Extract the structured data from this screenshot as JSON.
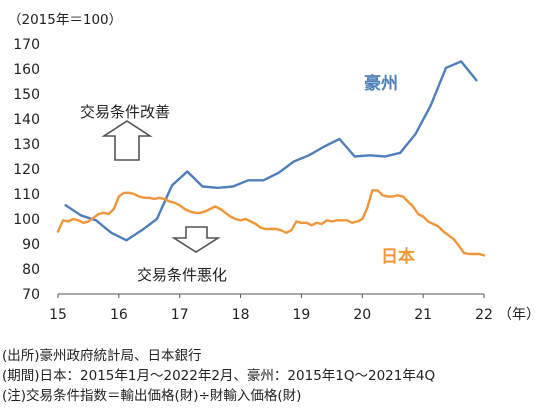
{
  "chart_data": {
    "type": "line",
    "unit_label": "（2015年＝100）",
    "x_unit_label": "（年）",
    "xlim": [
      15.0,
      22.0
    ],
    "ylim": [
      70,
      170
    ],
    "yticks": [
      70,
      80,
      90,
      100,
      110,
      120,
      130,
      140,
      150,
      160,
      170
    ],
    "xticks": [
      {
        "value": 15,
        "label": "15"
      },
      {
        "value": 16,
        "label": "16"
      },
      {
        "value": 17,
        "label": "17"
      },
      {
        "value": 18,
        "label": "18"
      },
      {
        "value": 19,
        "label": "19"
      },
      {
        "value": 20,
        "label": "20"
      },
      {
        "value": 21,
        "label": "21"
      },
      {
        "value": 22,
        "label": "22"
      }
    ],
    "grid": false,
    "annotations": {
      "improve": "交易条件改善",
      "worsen": "交易条件悪化"
    },
    "series": [
      {
        "name": "豪州",
        "color": "#4f7fba",
        "x": [
          15.125,
          15.375,
          15.625,
          15.875,
          16.125,
          16.375,
          16.625,
          16.875,
          17.125,
          17.375,
          17.625,
          17.875,
          18.125,
          18.375,
          18.625,
          18.875,
          19.125,
          19.375,
          19.625,
          19.875,
          20.125,
          20.375,
          20.625,
          20.875,
          21.125,
          21.375,
          21.625,
          21.875
        ],
        "values": [
          105.5,
          101.5,
          99.5,
          94.5,
          91.5,
          95.5,
          100,
          113.5,
          119,
          113,
          112.5,
          113,
          115.5,
          115.5,
          118.5,
          123,
          125.5,
          129,
          132,
          125,
          125.5,
          125,
          126.5,
          134,
          145.5,
          160.5,
          163,
          155.5
        ]
      },
      {
        "name": "日本",
        "color": "#f0963a",
        "x": [
          15.0,
          15.083,
          15.167,
          15.25,
          15.333,
          15.417,
          15.5,
          15.583,
          15.667,
          15.75,
          15.833,
          15.917,
          16.0,
          16.083,
          16.167,
          16.25,
          16.333,
          16.417,
          16.5,
          16.583,
          16.667,
          16.75,
          16.833,
          16.917,
          17.0,
          17.083,
          17.167,
          17.25,
          17.333,
          17.417,
          17.5,
          17.583,
          17.667,
          17.75,
          17.833,
          17.917,
          18.0,
          18.083,
          18.167,
          18.25,
          18.333,
          18.417,
          18.5,
          18.583,
          18.667,
          18.75,
          18.833,
          18.917,
          19.0,
          19.083,
          19.167,
          19.25,
          19.333,
          19.417,
          19.5,
          19.583,
          19.667,
          19.75,
          19.833,
          19.917,
          20.0,
          20.083,
          20.167,
          20.25,
          20.333,
          20.417,
          20.5,
          20.583,
          20.667,
          20.75,
          20.833,
          20.917,
          21.0,
          21.083,
          21.167,
          21.25,
          21.333,
          21.417,
          21.5,
          21.583,
          21.667,
          21.75,
          21.833,
          21.917,
          22.0
        ],
        "values": [
          95,
          99.5,
          99,
          100,
          99.5,
          98.5,
          99,
          100.5,
          102,
          102.5,
          102,
          104,
          109,
          110.5,
          110.5,
          110,
          109,
          108.5,
          108.5,
          108,
          108.5,
          108,
          107,
          106.5,
          105.5,
          104,
          103,
          102.5,
          102.5,
          103,
          104,
          105,
          104,
          102.5,
          101,
          100,
          99.5,
          100,
          99,
          98,
          96.5,
          96,
          96,
          96,
          95.5,
          94.5,
          95.5,
          99,
          98.5,
          98.5,
          97.5,
          98.5,
          98,
          99.5,
          99,
          99.5,
          99.5,
          99.5,
          98.5,
          99,
          100,
          104.5,
          111.5,
          111.5,
          109.5,
          109,
          109,
          109.5,
          109,
          107,
          105,
          102,
          101,
          99,
          98,
          97,
          95,
          93.5,
          92,
          89.5,
          86.5,
          86,
          86,
          86,
          85.5
        ]
      }
    ]
  },
  "notes": {
    "source": "(出所)豪州政府統計局、日本銀行",
    "period": "(期間)日本：2015年1月～2022年2月、豪州：2015年1Q～2021年4Q",
    "note": "(注)交易条件指数＝輸出価格(財)÷財輸入価格(財)"
  }
}
